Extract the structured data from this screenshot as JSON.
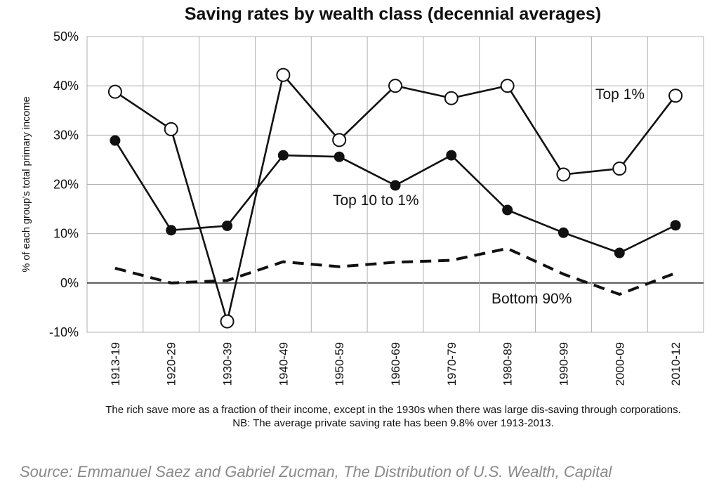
{
  "chart_data": {
    "type": "line",
    "title": "Saving rates by wealth class (decennial averages)",
    "ylabel": "% of each group's total primary income",
    "xlabel": "",
    "ylim": [
      -10,
      50
    ],
    "yticks": [
      -10,
      0,
      10,
      20,
      30,
      40,
      50
    ],
    "ytick_labels": [
      "-10%",
      "0%",
      "10%",
      "20%",
      "30%",
      "40%",
      "50%"
    ],
    "categories": [
      "1913-19",
      "1920-29",
      "1930-39",
      "1940-49",
      "1950-59",
      "1960-69",
      "1970-79",
      "1980-89",
      "1990-99",
      "2000-09",
      "2010-12"
    ],
    "grid": true,
    "series": [
      {
        "name": "Top 1%",
        "marker": "open-circle",
        "line": "solid",
        "values": [
          38.8,
          31.2,
          -7.8,
          42.2,
          29.0,
          40.0,
          37.5,
          40.0,
          22.0,
          23.2,
          38.0
        ]
      },
      {
        "name": "Top 10 to 1%",
        "marker": "filled-circle",
        "line": "solid",
        "values": [
          28.9,
          10.7,
          11.6,
          25.9,
          25.6,
          19.8,
          25.9,
          14.8,
          10.2,
          6.1,
          11.7
        ]
      },
      {
        "name": "Bottom 90%",
        "marker": "none",
        "line": "dashed",
        "values": [
          3.0,
          0.0,
          0.5,
          4.3,
          3.3,
          4.2,
          4.6,
          7.0,
          1.8,
          -2.3,
          2.0
        ]
      }
    ],
    "caption": "The rich save more as a fraction of their income, except in the 1930s when there was large dis-saving through corporations. NB: The average private saving rate has been 9.8% over 1913-2013."
  },
  "source_note": "Source: Emmanuel Saez and Gabriel Zucman, The Distribution of U.S. Wealth, Capital"
}
